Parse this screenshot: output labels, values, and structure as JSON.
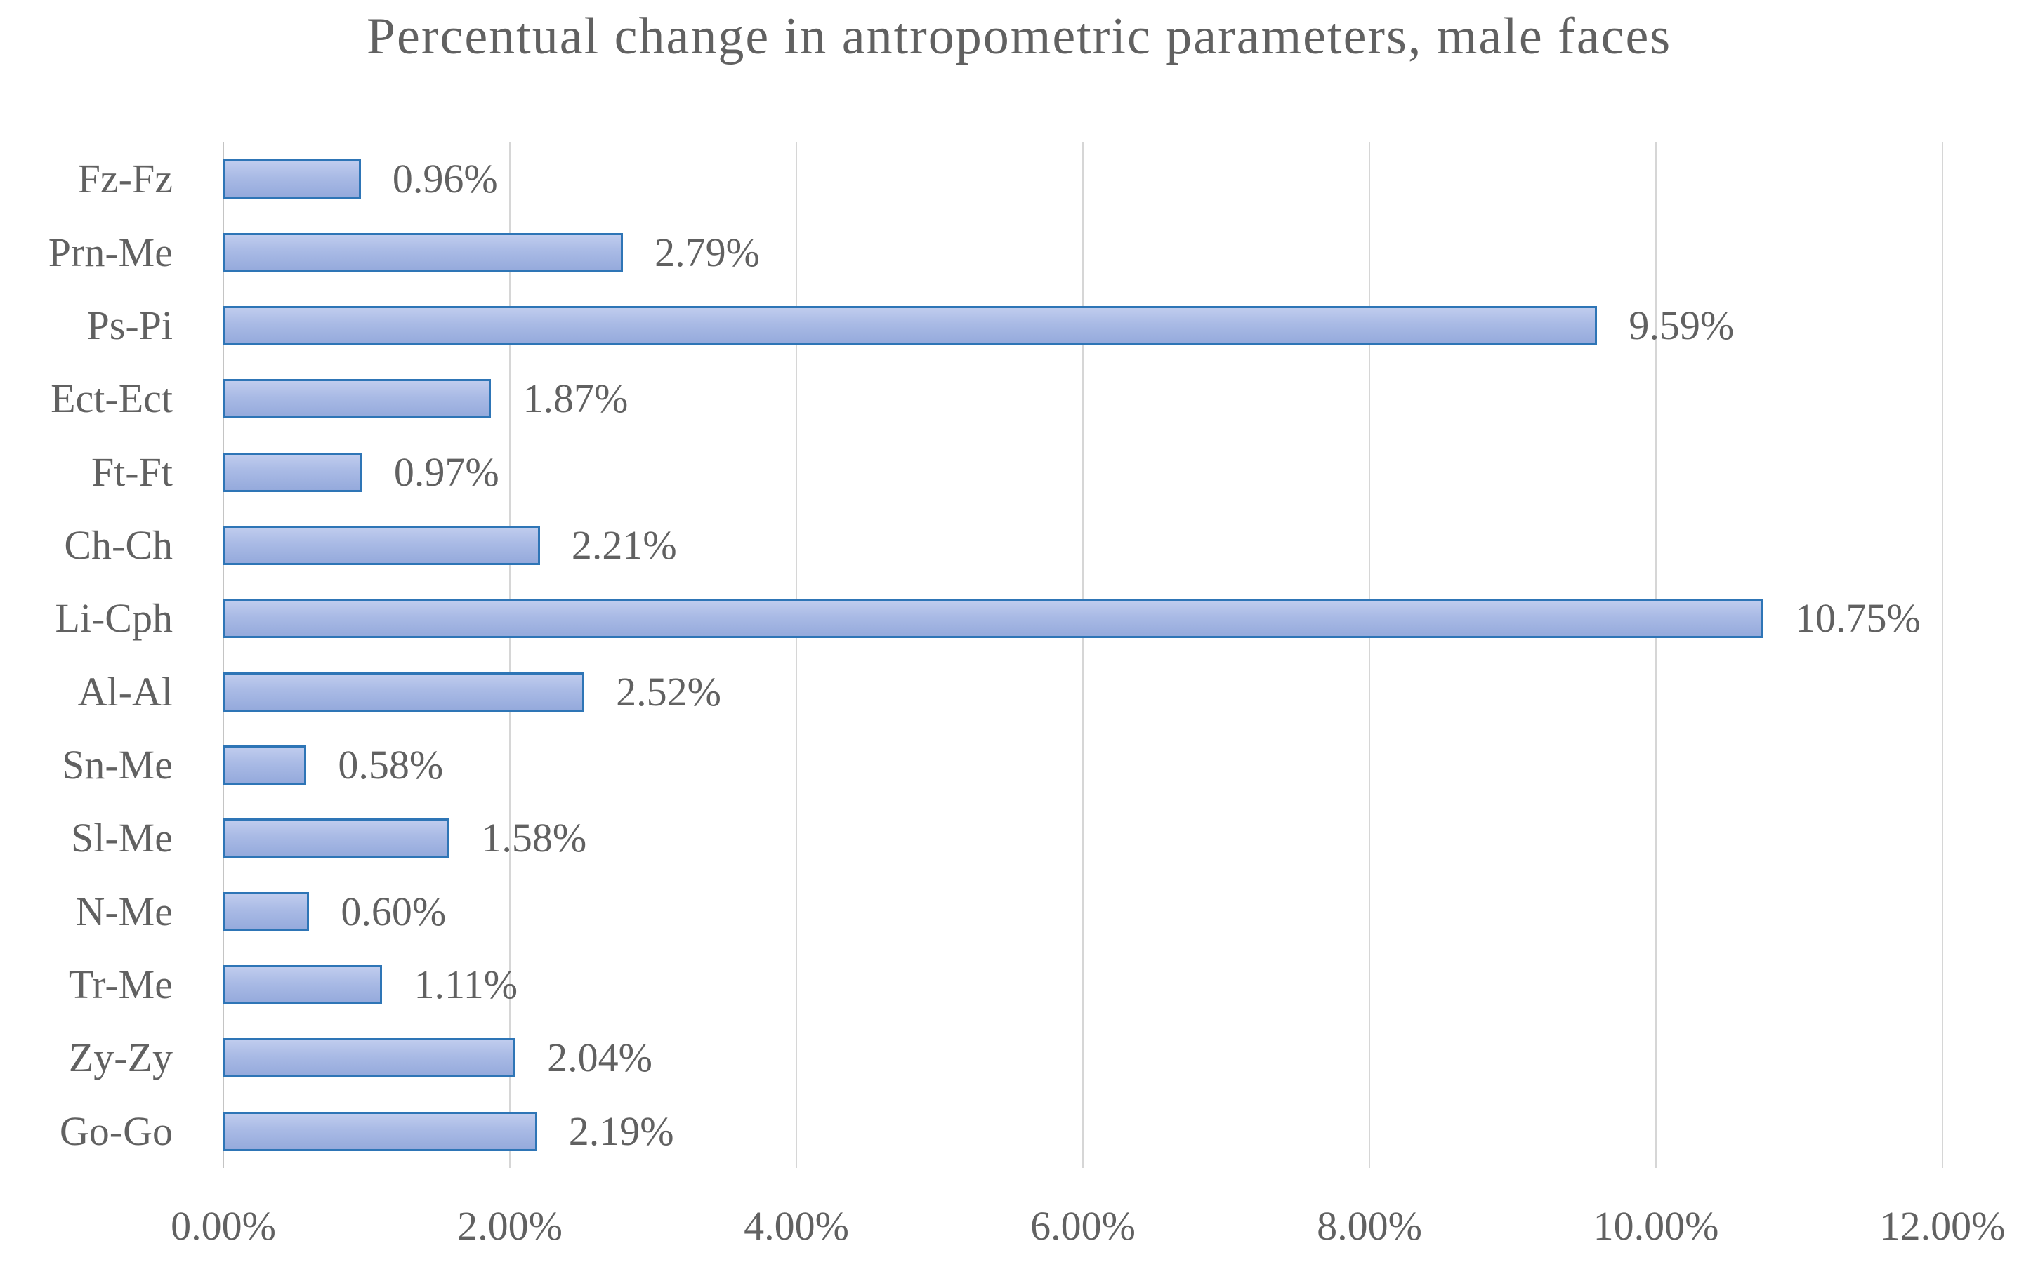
{
  "chart_data": {
    "type": "bar",
    "orientation": "horizontal",
    "title": "Percentual change in antropometric parameters, male faces",
    "categories": [
      "Fz-Fz",
      "Prn-Me",
      "Ps-Pi",
      "Ect-Ect",
      "Ft-Ft",
      "Ch-Ch",
      "Li-Cph",
      "Al-Al",
      "Sn-Me",
      "Sl-Me",
      "N-Me",
      "Tr-Me",
      "Zy-Zy",
      "Go-Go"
    ],
    "values": [
      0.96,
      2.79,
      9.59,
      1.87,
      0.97,
      2.21,
      10.75,
      2.52,
      0.58,
      1.58,
      0.6,
      1.11,
      2.04,
      2.19
    ],
    "data_labels": [
      "0.96%",
      "2.79%",
      "9.59%",
      "1.87%",
      "0.97%",
      "2.21%",
      "10.75%",
      "2.52%",
      "0.58%",
      "1.58%",
      "0.60%",
      "1.11%",
      "2.04%",
      "2.19%"
    ],
    "x_tick_labels": [
      "0.00%",
      "2.00%",
      "4.00%",
      "6.00%",
      "8.00%",
      "10.00%",
      "12.00%"
    ],
    "x_tick_values": [
      0,
      2,
      4,
      6,
      8,
      10,
      12
    ],
    "xlim": [
      0,
      12
    ],
    "xlabel": "",
    "ylabel": "",
    "grid": true,
    "legend": false,
    "colors": {
      "bar_fill_top": "#C0CCEE",
      "bar_fill": "#A9BAE5",
      "bar_fill_bottom": "#95AADC",
      "bar_border": "#2E75B6",
      "gridline": "#D6D6D6",
      "axis_line": "#C4C4C4",
      "text": "#616161",
      "background": "#FFFFFF"
    }
  }
}
